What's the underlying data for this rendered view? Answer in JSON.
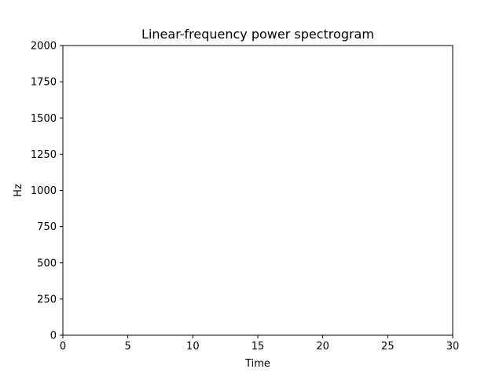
{
  "chart_data": {
    "type": "heatmap",
    "title": "Linear-frequency power spectrogram",
    "xlabel": "Time",
    "ylabel": "Hz",
    "xlim": [
      0,
      30
    ],
    "ylim": [
      0,
      2000
    ],
    "xticks": [
      0,
      5,
      10,
      15,
      20,
      25,
      30
    ],
    "yticks": [
      0,
      250,
      500,
      750,
      1000,
      1250,
      1500,
      1750,
      2000
    ],
    "xtick_labels": [
      "0",
      "5",
      "10",
      "15",
      "20",
      "25",
      "30"
    ],
    "ytick_labels": [
      "0",
      "250",
      "500",
      "750",
      "1000",
      "1250",
      "1500",
      "1750",
      "2000"
    ],
    "grid": false,
    "values": []
  }
}
